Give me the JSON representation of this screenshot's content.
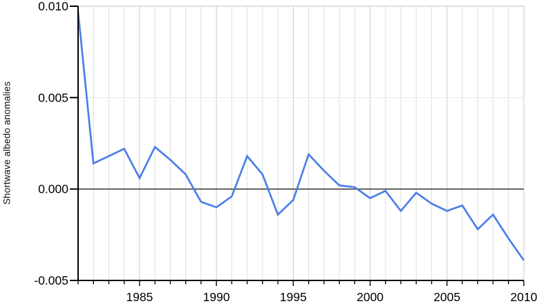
{
  "chart_data": {
    "type": "line",
    "title": "",
    "xlabel": "",
    "ylabel": "Shortwave albedo anomalies",
    "xlim": [
      1981,
      2010
    ],
    "ylim": [
      -0.005,
      0.01
    ],
    "x": [
      1981,
      1982,
      1983,
      1984,
      1985,
      1986,
      1987,
      1988,
      1989,
      1990,
      1991,
      1992,
      1993,
      1994,
      1995,
      1996,
      1997,
      1998,
      1999,
      2000,
      2001,
      2002,
      2003,
      2004,
      2005,
      2006,
      2007,
      2008,
      2009,
      2010
    ],
    "series": [
      {
        "name": "Shortwave albedo anomalies",
        "values": [
          0.0097,
          0.0014,
          0.0018,
          0.0022,
          0.0006,
          0.0023,
          0.0016,
          0.0008,
          -0.0007,
          -0.001,
          -0.0004,
          0.0018,
          0.0008,
          -0.0014,
          -0.0006,
          0.0019,
          0.001,
          0.0002,
          0.0001,
          -0.0005,
          -0.0001,
          -0.0012,
          -0.0002,
          -0.0008,
          -0.0012,
          -0.0009,
          -0.0022,
          -0.0014,
          -0.0027,
          -0.0039
        ]
      }
    ],
    "y_ticks": [
      {
        "v": 0.01,
        "label": "0.010"
      },
      {
        "v": 0.005,
        "label": "0.005"
      },
      {
        "v": 0.0,
        "label": "0.000"
      },
      {
        "v": -0.005,
        "label": "-0.005"
      }
    ],
    "x_major_ticks": [
      {
        "v": 1985,
        "label": "1985"
      },
      {
        "v": 1990,
        "label": "1990"
      },
      {
        "v": 1995,
        "label": "1995"
      },
      {
        "v": 2000,
        "label": "2000"
      },
      {
        "v": 2005,
        "label": "2005"
      },
      {
        "v": 2010,
        "label": "2010"
      }
    ],
    "grid": {
      "vertical_every_year": true,
      "horizontal": [
        0.005
      ],
      "legend": "none",
      "zero_line": 0.0
    },
    "colors": {
      "line": "#4b7ee8",
      "grid_minor": "#dedede",
      "grid_major": "#c9c9c9",
      "grid_horizontal": "#e7e7e7",
      "plot_border": "#c9c9c9",
      "axis": "#000000",
      "zero_line": "#222222",
      "text": "#000000"
    }
  }
}
